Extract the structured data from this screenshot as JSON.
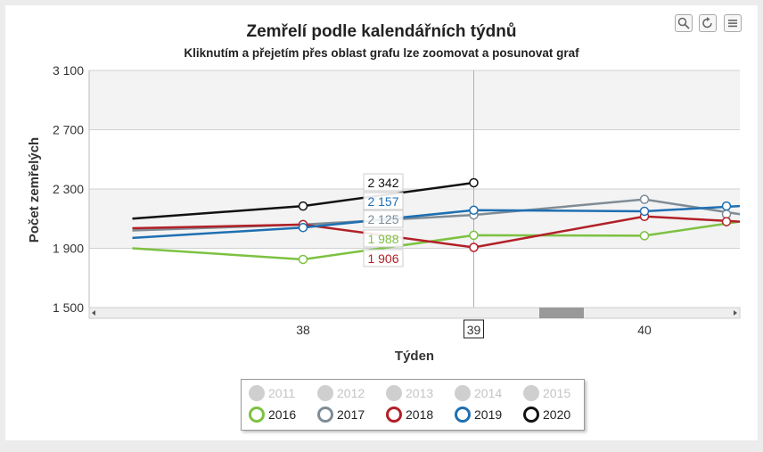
{
  "toolbar": {
    "zoom_icon": "magnifier-icon",
    "reset_icon": "reset-zoom-icon",
    "menu_icon": "hamburger-menu-icon"
  },
  "legend_inactive": [
    "2011",
    "2012",
    "2013",
    "2014",
    "2015"
  ],
  "tooltip_x_label": "39",
  "colors": {
    "2016": "#7dc142",
    "2017": "#7f8c96",
    "2018": "#b22027",
    "2019": "#1f6fb2",
    "2020": "#111111"
  },
  "chart_data": {
    "type": "line",
    "title": "Zemřelí podle kalendářních týdnů",
    "subtitle": "Kliknutím a přejetím přes oblast grafu lze zoomovat a posunovat graf",
    "xlabel": "Týden",
    "ylabel": "Počet zemřelých",
    "x": [
      37,
      38,
      39,
      40,
      41
    ],
    "x_ticks": [
      "38",
      "39",
      "40"
    ],
    "y_ticks": [
      "1 500",
      "1 900",
      "2 300",
      "2 700",
      "3 100"
    ],
    "ylim": [
      1500,
      3100
    ],
    "grid": true,
    "legend_position": "bottom",
    "series": [
      {
        "name": "2016",
        "values": [
          1900,
          1825,
          1988,
          1985,
          2080
        ]
      },
      {
        "name": "2017",
        "values": [
          2020,
          2060,
          2125,
          2230,
          2130
        ]
      },
      {
        "name": "2018",
        "values": [
          2035,
          2060,
          1906,
          2115,
          2080
        ]
      },
      {
        "name": "2019",
        "values": [
          1970,
          2040,
          2157,
          2150,
          2185
        ]
      },
      {
        "name": "2020",
        "values": [
          2100,
          2185,
          2342,
          null,
          null
        ]
      }
    ],
    "tooltip_values": [
      {
        "series": "2020",
        "label": "2 342"
      },
      {
        "series": "2019",
        "label": "2 157"
      },
      {
        "series": "2017",
        "label": "2 125"
      },
      {
        "series": "2016",
        "label": "1 988"
      },
      {
        "series": "2018",
        "label": "1 906"
      }
    ]
  }
}
